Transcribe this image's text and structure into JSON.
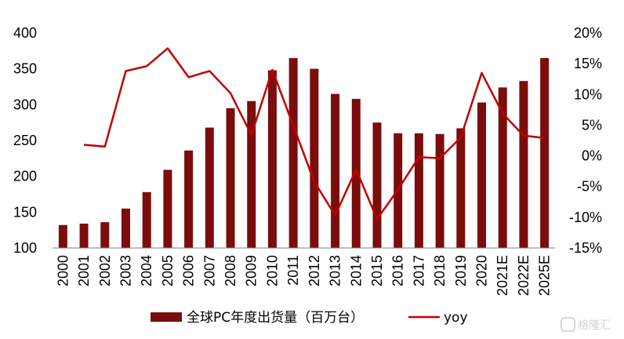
{
  "chart_data": {
    "type": "bar",
    "categories": [
      "2000",
      "2001",
      "2002",
      "2003",
      "2004",
      "2005",
      "2006",
      "2007",
      "2008",
      "2009",
      "2010",
      "2011",
      "2012",
      "2013",
      "2014",
      "2015",
      "2016",
      "2017",
      "2018",
      "2019",
      "2020",
      "2021E",
      "2022E",
      "2025E"
    ],
    "series": [
      {
        "name": "全球PC年度出货量（百万台）",
        "type": "bar",
        "axis": "left",
        "color": "#7b0d0d",
        "values": [
          132,
          134,
          136,
          155,
          178,
          209,
          236,
          268,
          295,
          305,
          348,
          365,
          350,
          315,
          308,
          275,
          260,
          260,
          259,
          267,
          303,
          324,
          333,
          365
        ]
      },
      {
        "name": "yoy",
        "type": "line",
        "axis": "right",
        "color": "#c00000",
        "values": [
          null,
          1.8,
          1.5,
          13.8,
          14.6,
          17.5,
          12.8,
          13.8,
          10.2,
          3.4,
          14.0,
          4.9,
          -4.2,
          -9.7,
          -2.2,
          -10.3,
          -5.5,
          -0.2,
          -0.4,
          3.0,
          13.5,
          6.9,
          3.3,
          2.9
        ]
      }
    ],
    "y_left": {
      "ylim": [
        100,
        400
      ],
      "ticks": [
        "100",
        "150",
        "200",
        "250",
        "300",
        "350",
        "400"
      ]
    },
    "y_right": {
      "ylim": [
        -15,
        20
      ],
      "ticks": [
        "-15%",
        "-10%",
        "-5%",
        "0%",
        "5%",
        "10%",
        "15%",
        "20%"
      ]
    },
    "legend_position": "bottom",
    "grid": false
  },
  "watermark": {
    "text": "格隆汇",
    "icon": "gelonghui-logo-icon"
  }
}
